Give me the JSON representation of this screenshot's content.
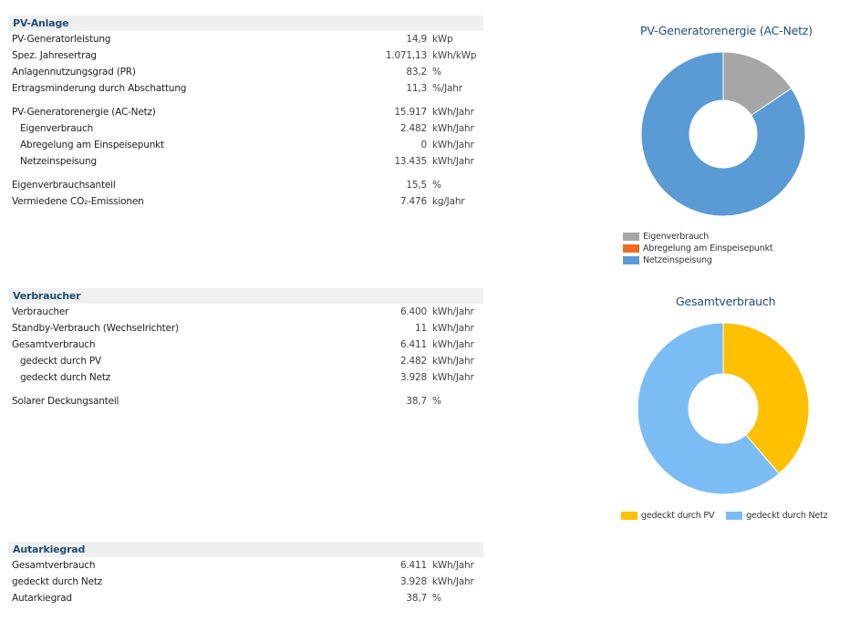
{
  "pv": {
    "title": "PV-Anlage",
    "rows": [
      {
        "label": "PV-Generatorleistung",
        "value": "14,9",
        "unit": "kWp"
      },
      {
        "label": "Spez. Jahresertrag",
        "value": "1.071,13",
        "unit": "kWh/kWp"
      },
      {
        "label": "Anlagennutzungsgrad (PR)",
        "value": "83,2",
        "unit": "%"
      },
      {
        "label": "Ertragsminderung durch Abschattung",
        "value": "11,3",
        "unit": "%/Jahr"
      },
      {
        "label": "PV-Generatorenergie (AC-Netz)",
        "value": "15.917",
        "unit": "kWh/Jahr"
      },
      {
        "label": "Eigenverbrauch",
        "value": "2.482",
        "unit": "kWh/Jahr"
      },
      {
        "label": "Abregelung am Einspeisepunkt",
        "value": "0",
        "unit": "kWh/Jahr"
      },
      {
        "label": "Netzeinspeisung",
        "value": "13.435",
        "unit": "kWh/Jahr"
      },
      {
        "label": "Eigenverbrauchsanteil",
        "value": "15,5",
        "unit": "%"
      },
      {
        "label": "Vermiedene CO₂-Emissionen",
        "value": "7.476",
        "unit": "kg/Jahr"
      }
    ]
  },
  "verbraucher": {
    "title": "Verbraucher",
    "rows": [
      {
        "label": "Verbraucher",
        "value": "6.400",
        "unit": "kWh/Jahr"
      },
      {
        "label": "Standby-Verbrauch (Wechselrichter)",
        "value": "11",
        "unit": "kWh/Jahr"
      },
      {
        "label": "Gesamtverbrauch",
        "value": "6.411",
        "unit": "kWh/Jahr"
      },
      {
        "label": "gedeckt durch PV",
        "value": "2.482",
        "unit": "kWh/Jahr"
      },
      {
        "label": "gedeckt durch Netz",
        "value": "3.928",
        "unit": "kWh/Jahr"
      },
      {
        "label": "Solarer Deckungsanteil",
        "value": "38,7",
        "unit": "%"
      }
    ]
  },
  "autarkie": {
    "title": "Autarkiegrad",
    "rows": [
      {
        "label": "Gesamtverbrauch",
        "value": "6.411",
        "unit": "kWh/Jahr"
      },
      {
        "label": "gedeckt durch Netz",
        "value": "3.928",
        "unit": "kWh/Jahr"
      },
      {
        "label": "Autarkiegrad",
        "value": "38,7",
        "unit": "%"
      }
    ]
  },
  "chart_data": [
    {
      "type": "pie",
      "title": "PV-Generatorenergie (AC-Netz)",
      "categories": [
        "Eigenverbrauch",
        "Abregelung am Einspeisepunkt",
        "Netzeinspeisung"
      ],
      "values": [
        2482,
        0,
        13435
      ],
      "colors": [
        "#a6a6a6",
        "#ed6d1e",
        "#5b9bd5"
      ],
      "legend": "bottom-left"
    },
    {
      "type": "pie",
      "title": "Gesamtverbrauch",
      "categories": [
        "gedeckt durch PV",
        "gedeckt durch Netz"
      ],
      "values": [
        2482,
        3928
      ],
      "colors": [
        "#ffc000",
        "#7cbcf4"
      ],
      "legend": "bottom"
    }
  ]
}
